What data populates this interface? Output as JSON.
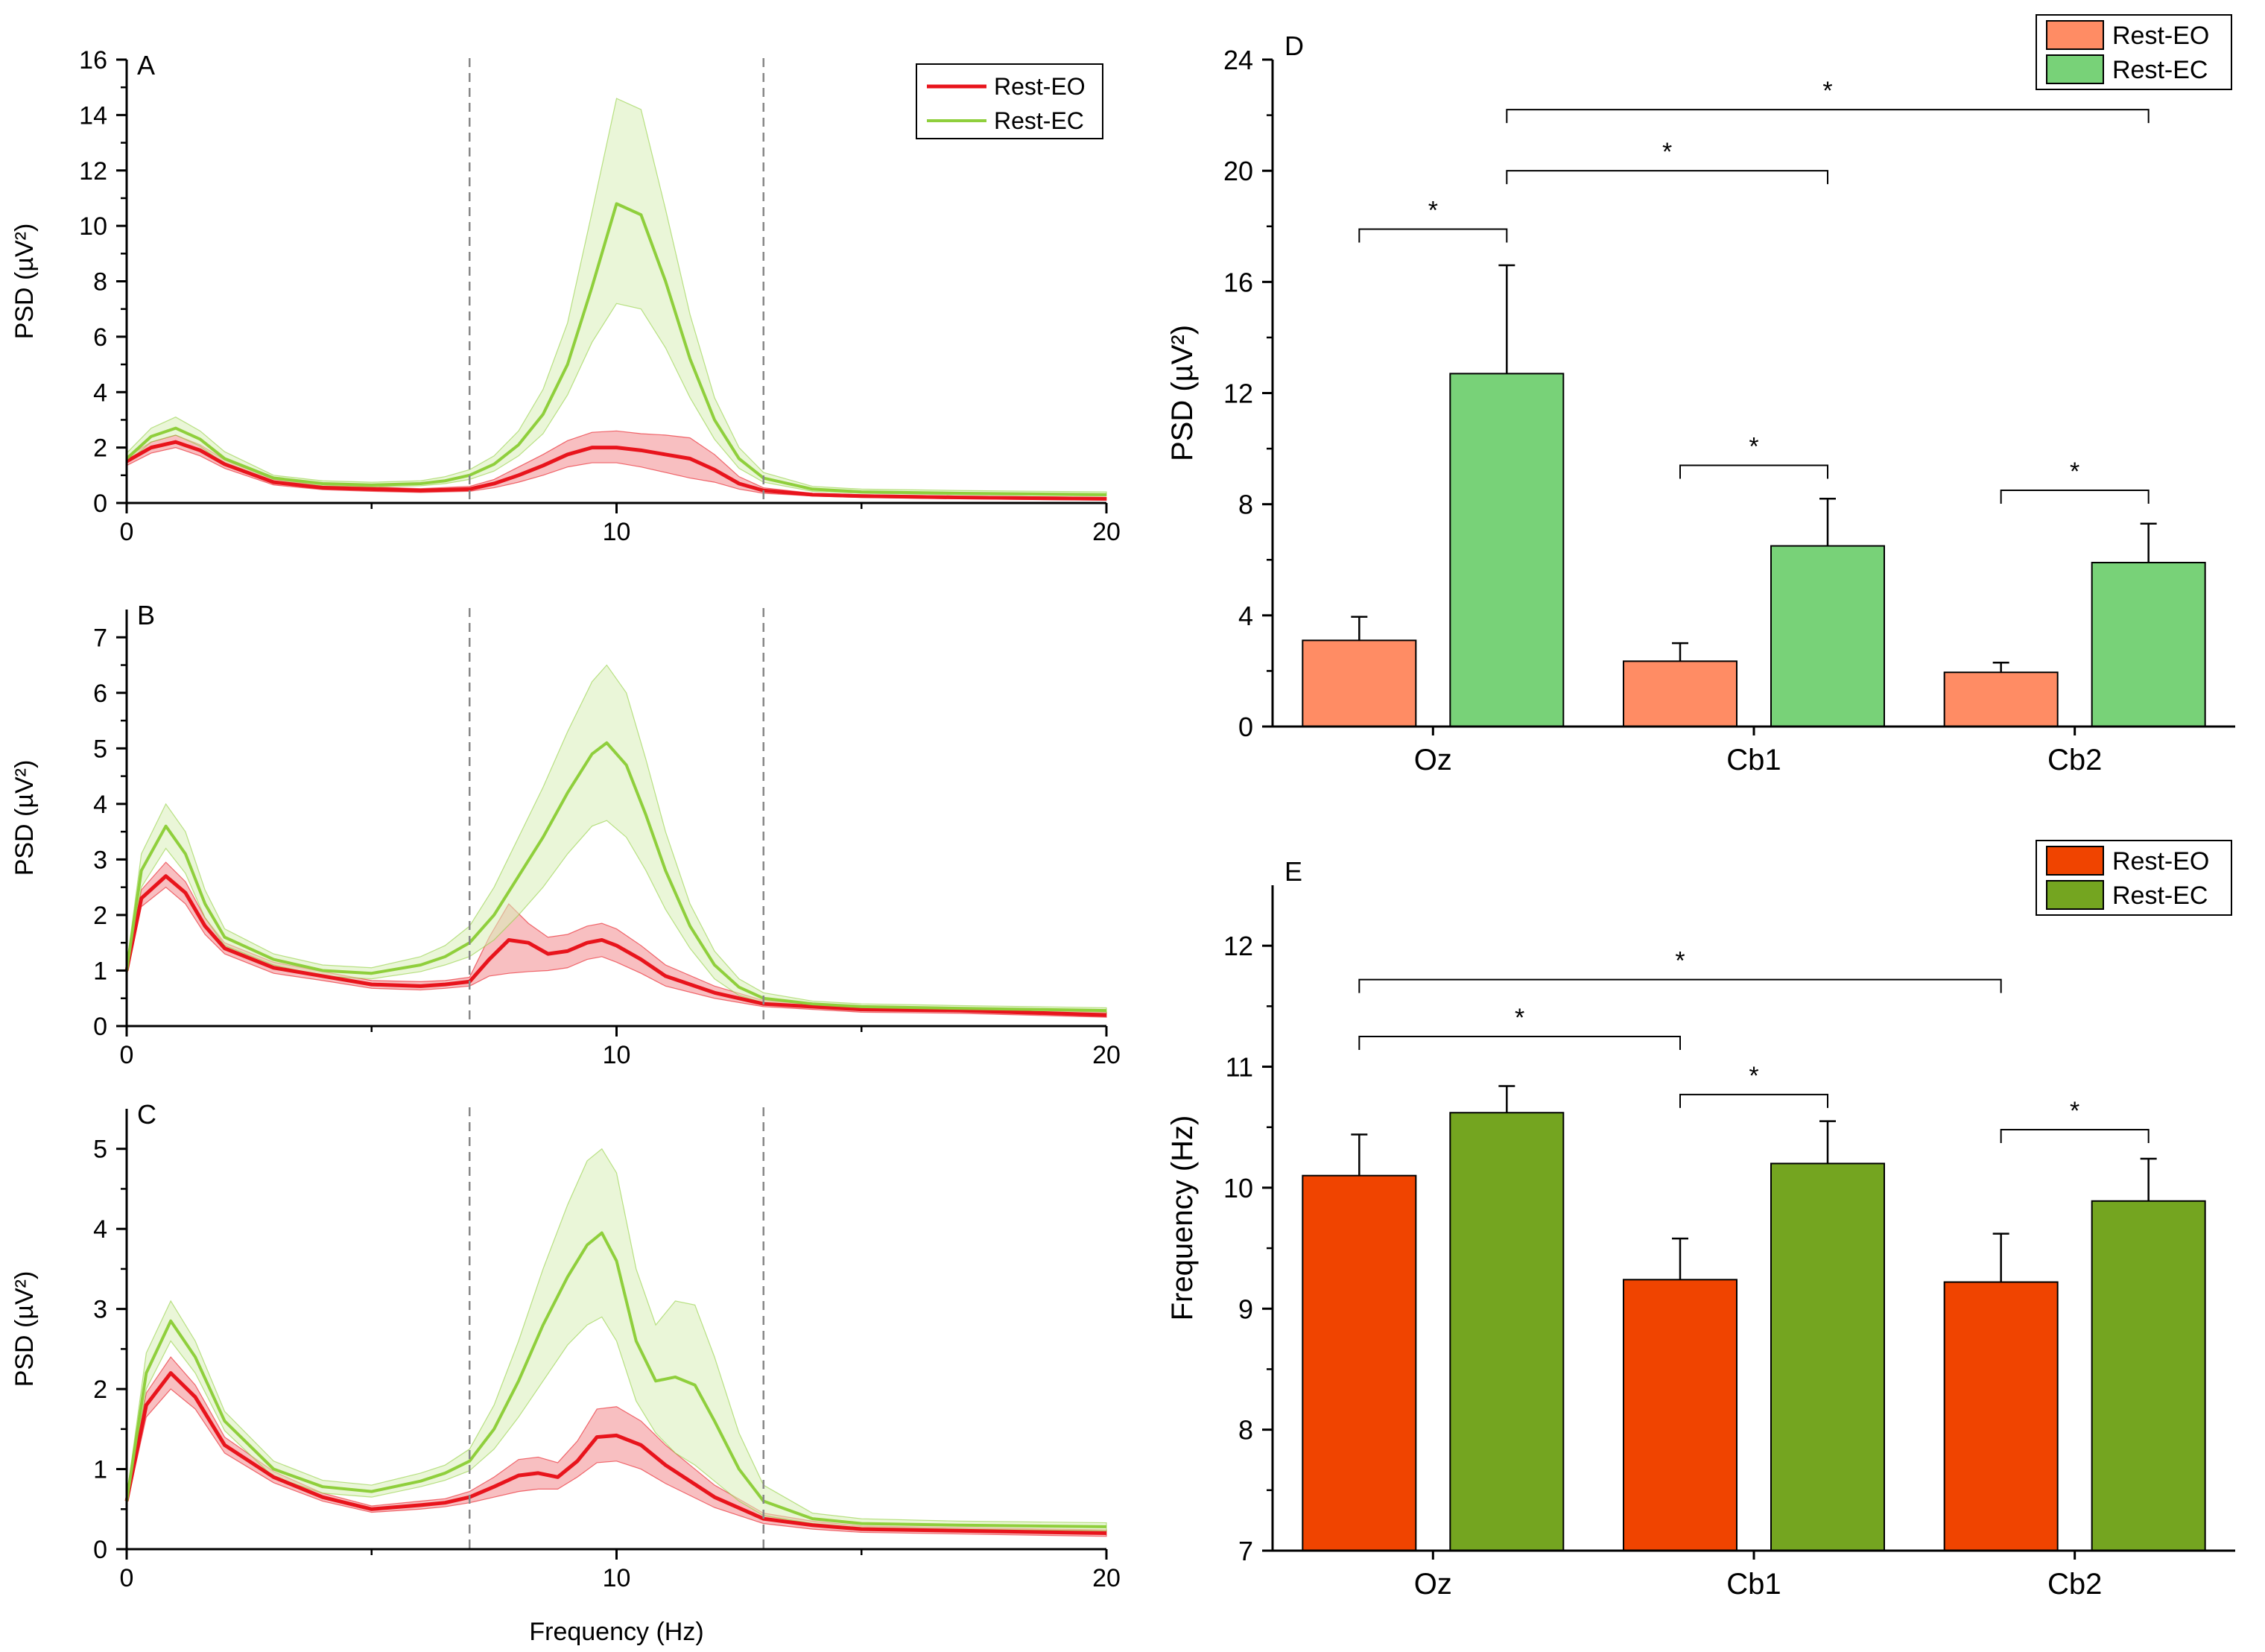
{
  "figure": {
    "shared_xlabel": "Frequency (Hz)"
  },
  "chart_data": [
    {
      "id": "A",
      "type": "line",
      "panel_label": "A",
      "ylabel": "PSD (µV²)",
      "xlabel": "",
      "xlim": [
        0,
        20
      ],
      "ylim": [
        0,
        16
      ],
      "xticks": [
        0,
        10,
        20
      ],
      "yticks": [
        0,
        2,
        4,
        6,
        8,
        10,
        12,
        14,
        16
      ],
      "grid": false,
      "band_lines_x": [
        7,
        13
      ],
      "legend": {
        "position": "top-right",
        "entries": [
          "Rest-EO",
          "Rest-EC"
        ]
      },
      "series": [
        {
          "name": "Rest-EO",
          "color": "#e8141c",
          "band_color": "#f28b8e",
          "x": [
            0,
            0.5,
            1,
            1.5,
            2,
            3,
            4,
            5,
            6,
            7,
            7.5,
            8,
            8.5,
            9,
            9.5,
            10,
            10.5,
            11,
            11.5,
            12,
            12.5,
            13,
            14,
            15,
            17,
            20
          ],
          "mean": [
            1.5,
            2.0,
            2.2,
            1.9,
            1.4,
            0.75,
            0.55,
            0.5,
            0.45,
            0.5,
            0.7,
            1.0,
            1.35,
            1.75,
            2.0,
            2.0,
            1.9,
            1.75,
            1.6,
            1.2,
            0.7,
            0.45,
            0.3,
            0.25,
            0.2,
            0.15
          ],
          "lower": [
            1.35,
            1.8,
            2.0,
            1.7,
            1.25,
            0.65,
            0.48,
            0.42,
            0.38,
            0.42,
            0.55,
            0.75,
            1.0,
            1.3,
            1.45,
            1.45,
            1.3,
            1.1,
            0.9,
            0.75,
            0.5,
            0.35,
            0.25,
            0.2,
            0.15,
            0.1
          ],
          "upper": [
            1.65,
            2.2,
            2.45,
            2.1,
            1.55,
            0.85,
            0.62,
            0.58,
            0.52,
            0.6,
            0.85,
            1.3,
            1.75,
            2.25,
            2.55,
            2.6,
            2.5,
            2.45,
            2.35,
            1.75,
            0.95,
            0.55,
            0.35,
            0.3,
            0.25,
            0.2
          ]
        },
        {
          "name": "Rest-EC",
          "color": "#8fcf3c",
          "band_color": "#d9efb8",
          "x": [
            0,
            0.5,
            1,
            1.5,
            2,
            3,
            4,
            5,
            6,
            6.5,
            7,
            7.5,
            8,
            8.5,
            9,
            9.5,
            10,
            10.5,
            11,
            11.5,
            12,
            12.5,
            13,
            14,
            15,
            17,
            20
          ],
          "mean": [
            1.6,
            2.4,
            2.7,
            2.3,
            1.6,
            0.9,
            0.7,
            0.65,
            0.7,
            0.8,
            1.0,
            1.4,
            2.1,
            3.2,
            5.0,
            7.8,
            10.8,
            10.4,
            8.0,
            5.2,
            3.0,
            1.6,
            0.9,
            0.5,
            0.4,
            0.35,
            0.3
          ],
          "lower": [
            1.45,
            2.2,
            2.45,
            2.05,
            1.4,
            0.8,
            0.62,
            0.58,
            0.62,
            0.7,
            0.85,
            1.15,
            1.7,
            2.5,
            3.9,
            5.8,
            7.2,
            7.0,
            5.6,
            3.8,
            2.3,
            1.25,
            0.75,
            0.42,
            0.35,
            0.3,
            0.25
          ],
          "upper": [
            1.8,
            2.7,
            3.1,
            2.6,
            1.85,
            1.0,
            0.8,
            0.75,
            0.8,
            0.95,
            1.2,
            1.7,
            2.6,
            4.1,
            6.5,
            10.5,
            14.6,
            14.2,
            10.6,
            6.8,
            3.8,
            2.0,
            1.1,
            0.6,
            0.5,
            0.45,
            0.4
          ]
        }
      ]
    },
    {
      "id": "B",
      "type": "line",
      "panel_label": "B",
      "ylabel": "PSD (µV²)",
      "xlabel": "",
      "xlim": [
        0,
        20
      ],
      "ylim": [
        0,
        7.5
      ],
      "xticks": [
        0,
        10,
        20
      ],
      "yticks": [
        0,
        1,
        2,
        3,
        4,
        5,
        6,
        7
      ],
      "grid": false,
      "band_lines_x": [
        7,
        13
      ],
      "series": [
        {
          "name": "Rest-EO",
          "color": "#e8141c",
          "band_color": "#f28b8e",
          "x": [
            0,
            0.3,
            0.8,
            1.2,
            1.6,
            2,
            3,
            4,
            5,
            6,
            6.5,
            7,
            7.4,
            7.8,
            8.2,
            8.6,
            9,
            9.4,
            9.7,
            10,
            10.5,
            11,
            12,
            13,
            14,
            15,
            17,
            20
          ],
          "mean": [
            1.0,
            2.3,
            2.7,
            2.4,
            1.8,
            1.4,
            1.05,
            0.9,
            0.75,
            0.72,
            0.75,
            0.8,
            1.2,
            1.55,
            1.5,
            1.3,
            1.35,
            1.5,
            1.55,
            1.45,
            1.2,
            0.9,
            0.6,
            0.4,
            0.35,
            0.3,
            0.28,
            0.2
          ],
          "lower": [
            0.9,
            2.15,
            2.5,
            2.2,
            1.65,
            1.3,
            0.95,
            0.82,
            0.68,
            0.65,
            0.68,
            0.72,
            0.9,
            0.95,
            0.98,
            1.0,
            1.05,
            1.2,
            1.25,
            1.15,
            0.95,
            0.72,
            0.5,
            0.35,
            0.3,
            0.25,
            0.23,
            0.16
          ],
          "upper": [
            1.1,
            2.45,
            2.95,
            2.6,
            1.95,
            1.5,
            1.15,
            0.98,
            0.82,
            0.8,
            0.82,
            0.88,
            1.6,
            2.2,
            1.85,
            1.6,
            1.65,
            1.8,
            1.85,
            1.75,
            1.45,
            1.1,
            0.72,
            0.46,
            0.4,
            0.35,
            0.33,
            0.25
          ]
        },
        {
          "name": "Rest-EC",
          "color": "#8fcf3c",
          "band_color": "#d9efb8",
          "x": [
            0,
            0.3,
            0.8,
            1.2,
            1.6,
            2,
            3,
            4,
            5,
            6,
            6.5,
            7,
            7.5,
            8,
            8.5,
            9,
            9.5,
            9.8,
            10.2,
            10.6,
            11,
            11.5,
            12,
            12.5,
            13,
            14,
            15,
            17,
            20
          ],
          "mean": [
            1.0,
            2.8,
            3.6,
            3.1,
            2.2,
            1.6,
            1.2,
            1.0,
            0.95,
            1.1,
            1.25,
            1.5,
            2.0,
            2.7,
            3.4,
            4.2,
            4.9,
            5.1,
            4.7,
            3.8,
            2.8,
            1.8,
            1.1,
            0.7,
            0.5,
            0.4,
            0.35,
            0.32,
            0.28
          ],
          "lower": [
            0.9,
            2.5,
            3.2,
            2.75,
            1.95,
            1.45,
            1.1,
            0.9,
            0.85,
            0.98,
            1.1,
            1.25,
            1.55,
            2.0,
            2.5,
            3.1,
            3.6,
            3.7,
            3.4,
            2.8,
            2.1,
            1.4,
            0.85,
            0.55,
            0.42,
            0.35,
            0.3,
            0.27,
            0.23
          ],
          "upper": [
            1.1,
            3.1,
            4.0,
            3.5,
            2.45,
            1.75,
            1.3,
            1.1,
            1.05,
            1.25,
            1.45,
            1.8,
            2.5,
            3.4,
            4.3,
            5.3,
            6.2,
            6.5,
            6.0,
            4.8,
            3.5,
            2.2,
            1.35,
            0.85,
            0.6,
            0.45,
            0.4,
            0.37,
            0.33
          ]
        }
      ]
    },
    {
      "id": "C",
      "type": "line",
      "panel_label": "C",
      "ylabel": "PSD (µV²)",
      "xlabel": "Frequency (Hz)",
      "xlim": [
        0,
        20
      ],
      "ylim": [
        0,
        5.5
      ],
      "xticks": [
        0,
        10,
        20
      ],
      "yticks": [
        0,
        1,
        2,
        3,
        4,
        5
      ],
      "grid": false,
      "band_lines_x": [
        7,
        13
      ],
      "series": [
        {
          "name": "Rest-EO",
          "color": "#e8141c",
          "band_color": "#f28b8e",
          "x": [
            0,
            0.4,
            0.9,
            1.4,
            2,
            3,
            4,
            5,
            6,
            6.5,
            7,
            7.5,
            8,
            8.4,
            8.8,
            9.2,
            9.6,
            10,
            10.5,
            11,
            12,
            13,
            14,
            15,
            17,
            20
          ],
          "mean": [
            0.6,
            1.8,
            2.2,
            1.9,
            1.3,
            0.9,
            0.65,
            0.5,
            0.55,
            0.58,
            0.65,
            0.78,
            0.92,
            0.95,
            0.9,
            1.1,
            1.4,
            1.42,
            1.3,
            1.05,
            0.65,
            0.38,
            0.3,
            0.25,
            0.23,
            0.2
          ],
          "lower": [
            0.55,
            1.65,
            2.0,
            1.75,
            1.2,
            0.83,
            0.6,
            0.46,
            0.5,
            0.53,
            0.58,
            0.65,
            0.72,
            0.75,
            0.75,
            0.9,
            1.08,
            1.1,
            1.0,
            0.82,
            0.52,
            0.32,
            0.25,
            0.21,
            0.19,
            0.16
          ],
          "upper": [
            0.65,
            1.95,
            2.4,
            2.05,
            1.4,
            0.97,
            0.7,
            0.54,
            0.6,
            0.63,
            0.72,
            0.9,
            1.12,
            1.15,
            1.08,
            1.35,
            1.75,
            1.78,
            1.6,
            1.3,
            0.8,
            0.45,
            0.35,
            0.29,
            0.27,
            0.24
          ]
        },
        {
          "name": "Rest-EC",
          "color": "#8fcf3c",
          "band_color": "#d9efb8",
          "x": [
            0,
            0.4,
            0.9,
            1.4,
            2,
            3,
            4,
            5,
            6,
            6.5,
            7,
            7.5,
            8,
            8.5,
            9,
            9.4,
            9.7,
            10,
            10.4,
            10.8,
            11.2,
            11.6,
            12,
            12.5,
            13,
            14,
            15,
            17,
            20
          ],
          "mean": [
            0.6,
            2.2,
            2.85,
            2.4,
            1.6,
            1.0,
            0.78,
            0.72,
            0.85,
            0.95,
            1.1,
            1.5,
            2.1,
            2.8,
            3.4,
            3.8,
            3.95,
            3.6,
            2.6,
            2.1,
            2.15,
            2.05,
            1.6,
            1.0,
            0.6,
            0.38,
            0.32,
            0.3,
            0.28
          ],
          "lower": [
            0.55,
            2.0,
            2.6,
            2.2,
            1.48,
            0.9,
            0.7,
            0.65,
            0.78,
            0.86,
            0.98,
            1.25,
            1.65,
            2.1,
            2.55,
            2.8,
            2.9,
            2.6,
            1.85,
            1.45,
            1.2,
            1.05,
            0.85,
            0.6,
            0.42,
            0.32,
            0.27,
            0.25,
            0.23
          ],
          "upper": [
            0.65,
            2.45,
            3.1,
            2.6,
            1.72,
            1.1,
            0.86,
            0.8,
            0.95,
            1.05,
            1.25,
            1.8,
            2.6,
            3.5,
            4.3,
            4.85,
            5.0,
            4.7,
            3.5,
            2.8,
            3.1,
            3.05,
            2.4,
            1.45,
            0.8,
            0.45,
            0.38,
            0.35,
            0.33
          ]
        }
      ]
    },
    {
      "id": "D",
      "type": "bar",
      "panel_label": "D",
      "ylabel": "PSD (µV²)",
      "categories": [
        "Oz",
        "Cb1",
        "Cb2"
      ],
      "ylim": [
        0,
        24
      ],
      "yticks": [
        0,
        4,
        8,
        12,
        16,
        20,
        24
      ],
      "grid": false,
      "legend": {
        "position": "top-right",
        "entries": [
          "Rest-EO",
          "Rest-EC"
        ]
      },
      "series": [
        {
          "name": "Rest-EO",
          "color": "#ff8c64",
          "values": [
            3.1,
            2.35,
            1.95
          ],
          "errors": [
            0.85,
            0.65,
            0.35
          ]
        },
        {
          "name": "Rest-EC",
          "color": "#78d278",
          "values": [
            12.7,
            6.5,
            5.9
          ],
          "errors": [
            3.9,
            1.7,
            1.4
          ]
        }
      ],
      "significance": [
        {
          "from": [
            0,
            0
          ],
          "to": [
            0,
            1
          ],
          "y": 17.9,
          "label": "*"
        },
        {
          "from": [
            1,
            0
          ],
          "to": [
            1,
            1
          ],
          "y": 9.4,
          "label": "*"
        },
        {
          "from": [
            2,
            0
          ],
          "to": [
            2,
            1
          ],
          "y": 8.5,
          "label": "*"
        },
        {
          "from": [
            0,
            1
          ],
          "to": [
            1,
            1
          ],
          "y": 20.0,
          "label": "*"
        },
        {
          "from": [
            0,
            1
          ],
          "to": [
            2,
            1
          ],
          "y": 22.2,
          "label": "*"
        }
      ]
    },
    {
      "id": "E",
      "type": "bar",
      "panel_label": "E",
      "ylabel": "Frequency (Hz)",
      "categories": [
        "Oz",
        "Cb1",
        "Cb2"
      ],
      "ylim": [
        7,
        12.5
      ],
      "yticks": [
        7,
        8,
        9,
        10,
        11,
        12
      ],
      "grid": false,
      "legend": {
        "position": "top-right",
        "entries": [
          "Rest-EO",
          "Rest-EC"
        ]
      },
      "series": [
        {
          "name": "Rest-EO",
          "color": "#f04400",
          "values": [
            10.1,
            9.24,
            9.22
          ],
          "errors": [
            0.34,
            0.34,
            0.4
          ]
        },
        {
          "name": "Rest-EC",
          "color": "#74a520",
          "values": [
            10.62,
            10.2,
            9.89
          ],
          "errors": [
            0.22,
            0.35,
            0.35
          ]
        }
      ],
      "significance": [
        {
          "from": [
            1,
            0
          ],
          "to": [
            1,
            1
          ],
          "y": 10.77,
          "label": "*"
        },
        {
          "from": [
            2,
            0
          ],
          "to": [
            2,
            1
          ],
          "y": 10.48,
          "label": "*"
        },
        {
          "from": [
            0,
            0
          ],
          "to": [
            1,
            0
          ],
          "y": 11.25,
          "label": "*"
        },
        {
          "from": [
            0,
            0
          ],
          "to": [
            2,
            0
          ],
          "y": 11.72,
          "label": "*"
        }
      ]
    }
  ]
}
